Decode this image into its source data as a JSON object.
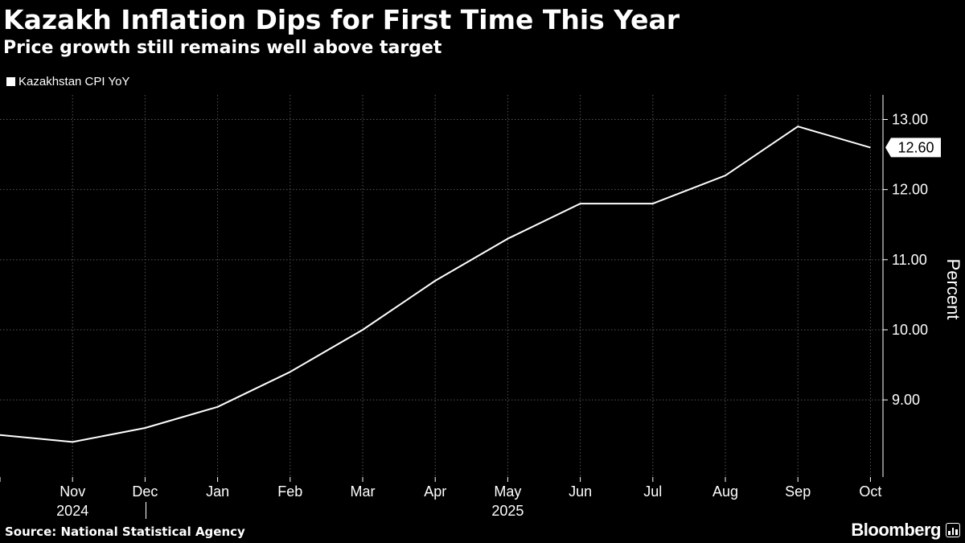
{
  "title": "Kazakh Inflation Dips for First Time This Year",
  "subtitle": "Price growth still remains well above target",
  "source": "Source: National Statistical Agency",
  "brand": "Bloomberg",
  "colors": {
    "background": "#000000",
    "line": "#ffffff",
    "grid": "#555555",
    "text": "#ffffff"
  },
  "chart_data": {
    "type": "line",
    "x": [
      "Oct 2024",
      "Nov 2024",
      "Dec 2024",
      "Jan 2025",
      "Feb 2025",
      "Mar 2025",
      "Apr 2025",
      "May 2025",
      "Jun 2025",
      "Jul 2025",
      "Aug 2025",
      "Sep 2025",
      "Oct 2025"
    ],
    "tick_labels": [
      "Nov",
      "Dec",
      "Jan",
      "Feb",
      "Mar",
      "Apr",
      "May",
      "Jun",
      "Jul",
      "Aug",
      "Sep",
      "Oct"
    ],
    "year_labels": [
      "2024",
      "2025"
    ],
    "series": [
      {
        "name": "Kazakhstan CPI  YoY",
        "values": [
          8.5,
          8.4,
          8.6,
          8.9,
          9.4,
          10.0,
          10.7,
          11.3,
          11.8,
          11.8,
          12.2,
          12.9,
          12.6
        ]
      }
    ],
    "last_value_label": "12.60",
    "ylabel": "Percent",
    "yticks": [
      "13.00",
      "12.00",
      "11.00",
      "10.00",
      "9.00"
    ],
    "ylim": [
      7.9,
      13.35
    ],
    "y_axis_position": "right",
    "grid": true,
    "grid_style": "dotted",
    "legend": "top-left"
  }
}
